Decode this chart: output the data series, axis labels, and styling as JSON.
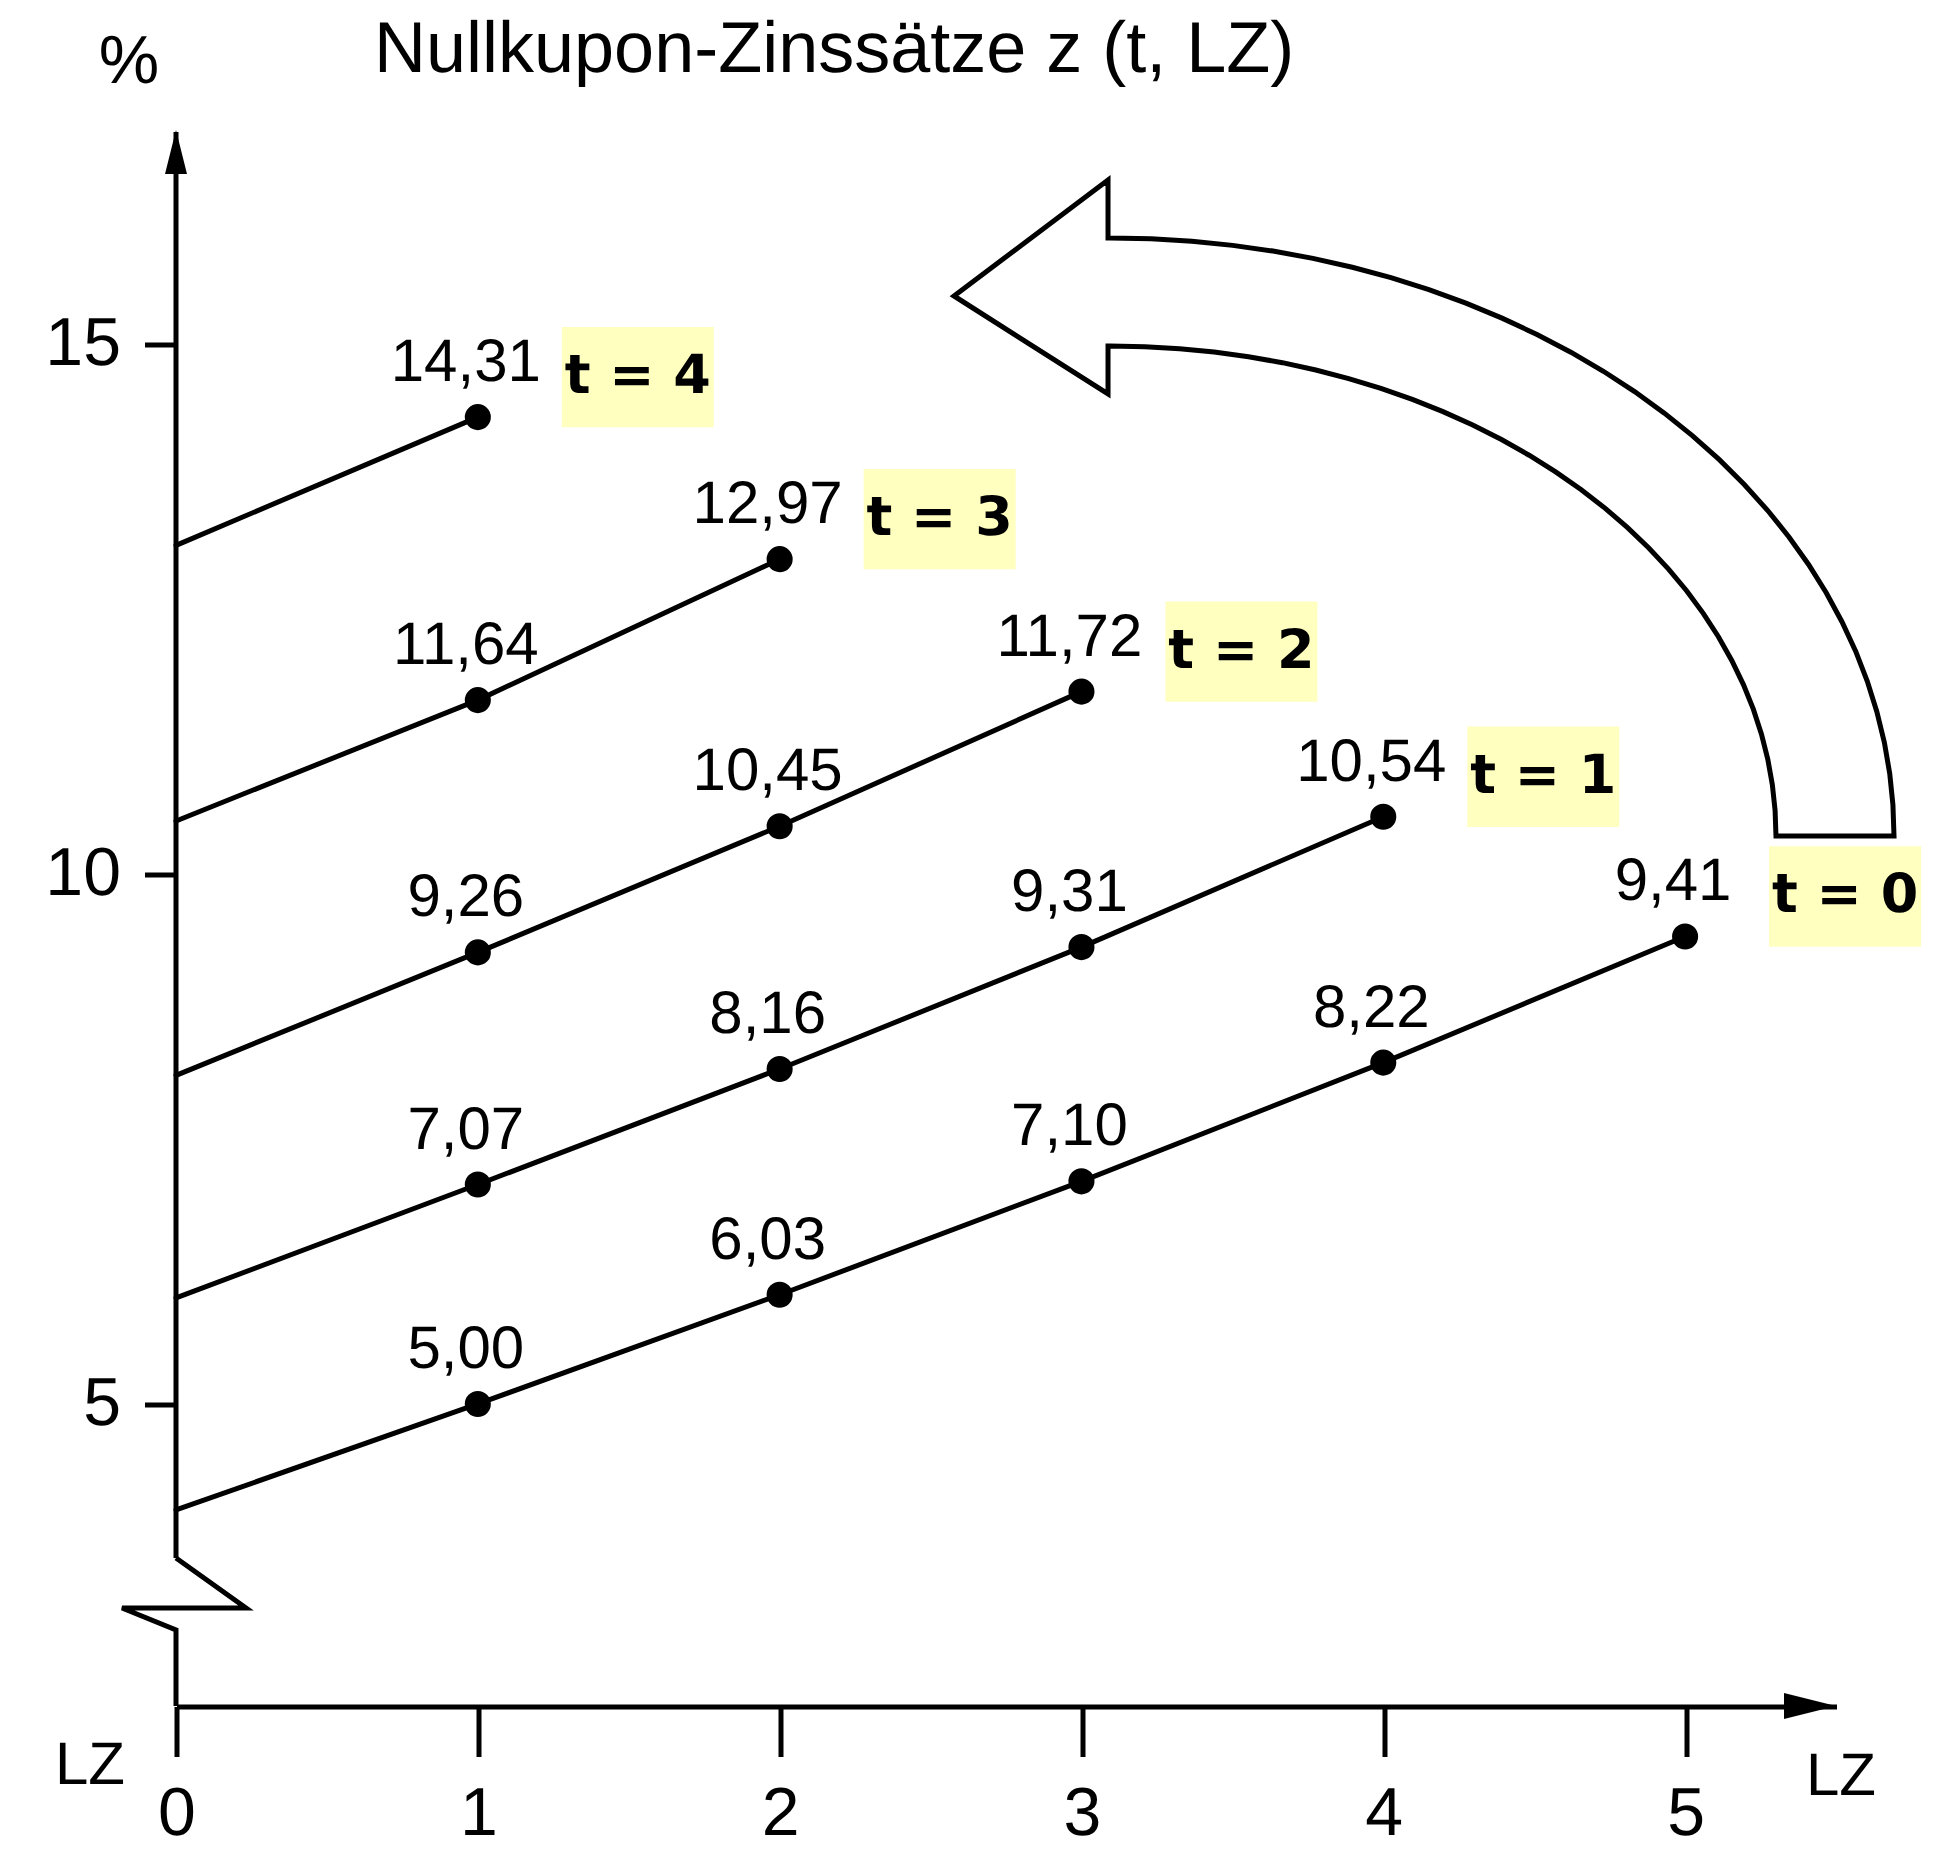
{
  "chart_data": {
    "type": "line",
    "title": "Nullkupon-Zinssätze z (t, LZ)",
    "xlabel": "LZ",
    "ylabel": "%",
    "annotations": [
      "LZ"
    ],
    "xlim": [
      0,
      5.5
    ],
    "xticks": [
      0,
      1,
      2,
      3,
      4,
      5
    ],
    "ylim": [
      2.15,
      17
    ],
    "yticks": [
      5,
      10,
      15
    ],
    "marker": "circle",
    "line_style": "solid",
    "series": [
      {
        "name": "t = 0",
        "marker": "none",
        "color": "#000000",
        "x": [
          0,
          1,
          2,
          3,
          4,
          5
        ],
        "values": [
          4.0,
          5.0,
          6.03,
          7.1,
          8.22,
          9.41
        ]
      },
      {
        "type": "scatter",
        "color": "#000000",
        "x": [
          1,
          2,
          3,
          4,
          5
        ],
        "values": [
          5.0,
          6.03,
          7.1,
          8.22,
          9.41
        ],
        "value_labels": [
          "5,00",
          "6,03",
          "7,10",
          "8,22",
          "9,41"
        ]
      },
      {
        "name": "t = 1",
        "marker": "none",
        "color": "#000000",
        "x": [
          0,
          1,
          2,
          3,
          4
        ],
        "values": [
          6.0,
          7.07,
          8.16,
          9.31,
          10.54
        ]
      },
      {
        "type": "scatter",
        "color": "#000000",
        "x": [
          1,
          2,
          3,
          4
        ],
        "values": [
          7.07,
          8.16,
          9.31,
          10.54
        ],
        "value_labels": [
          "7,07",
          "8,16",
          "9,31",
          "10,54"
        ]
      },
      {
        "name": "t = 2",
        "marker": "none",
        "color": "#000000",
        "x": [
          0,
          1,
          2,
          3
        ],
        "values": [
          8.1,
          9.26,
          10.45,
          11.72
        ]
      },
      {
        "type": "scatter",
        "color": "#000000",
        "x": [
          1,
          2,
          3
        ],
        "values": [
          9.26,
          10.45,
          11.72
        ],
        "value_labels": [
          "9,26",
          "10,45",
          "11,72"
        ]
      },
      {
        "name": "t = 3",
        "marker": "none",
        "color": "#000000",
        "x": [
          0,
          1,
          2
        ],
        "values": [
          10.5,
          11.64,
          12.97
        ]
      },
      {
        "type": "scatter",
        "color": "#000000",
        "x": [
          1,
          2
        ],
        "values": [
          11.64,
          12.97
        ],
        "value_labels": [
          "11,64",
          "12,97"
        ]
      },
      {
        "name": "t = 4",
        "marker": "none",
        "color": "#000000",
        "x": [
          0,
          1
        ],
        "values": [
          13.1,
          14.31
        ]
      },
      {
        "type": "scatter",
        "color": "#000000",
        "x": [
          1
        ],
        "values": [
          14.31
        ],
        "value_labels": [
          "14,31"
        ]
      }
    ]
  }
}
